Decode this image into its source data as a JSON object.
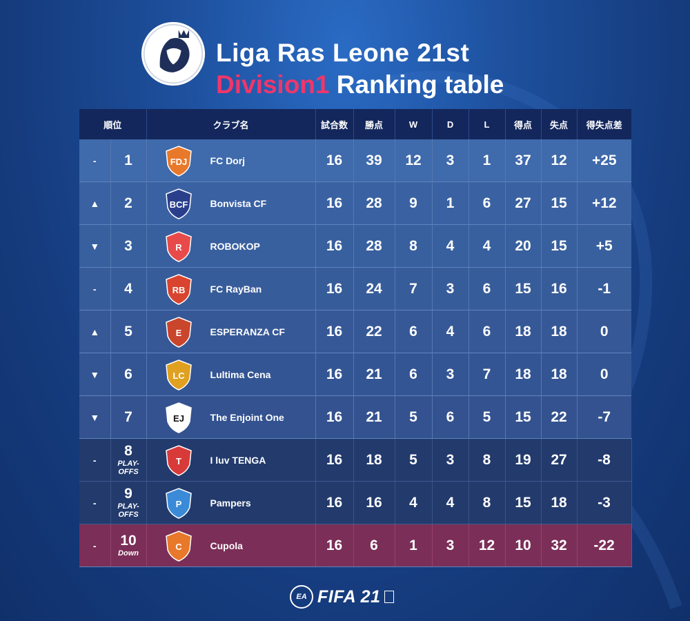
{
  "title": {
    "line1": "Liga Ras Leone 21st",
    "line2_highlight": "Division1",
    "line2_rest": " Ranking table",
    "logo_text": "Liga Ras Leone",
    "highlight_color": "#f0366a"
  },
  "headers": {
    "rank": "順位",
    "club": "クラブ名",
    "played": "試合数",
    "points": "勝点",
    "w": "W",
    "d": "D",
    "l": "L",
    "gf": "得点",
    "ga": "失点",
    "gd": "得失点差"
  },
  "rows": [
    {
      "move": "-",
      "rank": "1",
      "sub": "",
      "club": "FC Dorj",
      "crest_text": "FDJ",
      "crest_color": "#e8782a",
      "played": "16",
      "pts": "39",
      "w": "12",
      "d": "3",
      "l": "1",
      "gf": "37",
      "ga": "12",
      "gd": "+25"
    },
    {
      "move": "▲",
      "rank": "2",
      "sub": "",
      "club": "Bonvista CF",
      "crest_text": "BCF",
      "crest_color": "#2a3f8c",
      "played": "16",
      "pts": "28",
      "w": "9",
      "d": "1",
      "l": "6",
      "gf": "27",
      "ga": "15",
      "gd": "+12"
    },
    {
      "move": "▼",
      "rank": "3",
      "sub": "",
      "club": "ROBOKOP",
      "crest_text": "R",
      "crest_color": "#e84a4a",
      "played": "16",
      "pts": "28",
      "w": "8",
      "d": "4",
      "l": "4",
      "gf": "20",
      "ga": "15",
      "gd": "+5"
    },
    {
      "move": "-",
      "rank": "4",
      "sub": "",
      "club": "FC RayBan",
      "crest_text": "RB",
      "crest_color": "#d9442e",
      "played": "16",
      "pts": "24",
      "w": "7",
      "d": "3",
      "l": "6",
      "gf": "15",
      "ga": "16",
      "gd": "-1"
    },
    {
      "move": "▲",
      "rank": "5",
      "sub": "",
      "club": "ESPERANZA CF",
      "crest_text": "E",
      "crest_color": "#c9452c",
      "played": "16",
      "pts": "22",
      "w": "6",
      "d": "4",
      "l": "6",
      "gf": "18",
      "ga": "18",
      "gd": "0"
    },
    {
      "move": "▼",
      "rank": "6",
      "sub": "",
      "club": "Lultima Cena",
      "crest_text": "LC",
      "crest_color": "#e0a020",
      "played": "16",
      "pts": "21",
      "w": "6",
      "d": "3",
      "l": "7",
      "gf": "18",
      "ga": "18",
      "gd": "0"
    },
    {
      "move": "▼",
      "rank": "7",
      "sub": "",
      "club": "The Enjoint One",
      "crest_text": "EJ",
      "crest_color": "#ffffff",
      "played": "16",
      "pts": "21",
      "w": "5",
      "d": "6",
      "l": "5",
      "gf": "15",
      "ga": "22",
      "gd": "-7"
    },
    {
      "move": "-",
      "rank": "8",
      "sub": "PLAY-OFFS",
      "club": "I luv TENGA",
      "crest_text": "T",
      "crest_color": "#d83a3a",
      "played": "16",
      "pts": "18",
      "w": "5",
      "d": "3",
      "l": "8",
      "gf": "19",
      "ga": "27",
      "gd": "-8"
    },
    {
      "move": "-",
      "rank": "9",
      "sub": "PLAY-OFFS",
      "club": "Pampers",
      "crest_text": "P",
      "crest_color": "#3a8ad8",
      "played": "16",
      "pts": "16",
      "w": "4",
      "d": "4",
      "l": "8",
      "gf": "15",
      "ga": "18",
      "gd": "-3"
    },
    {
      "move": "-",
      "rank": "10",
      "sub": "Down",
      "club": "Cupola",
      "crest_text": "C",
      "crest_color": "#e8782a",
      "played": "16",
      "pts": "6",
      "w": "1",
      "d": "3",
      "l": "12",
      "gf": "10",
      "ga": "32",
      "gd": "-22"
    }
  ],
  "footer": {
    "ea": "EA",
    "fifa": "FIFA 21"
  }
}
